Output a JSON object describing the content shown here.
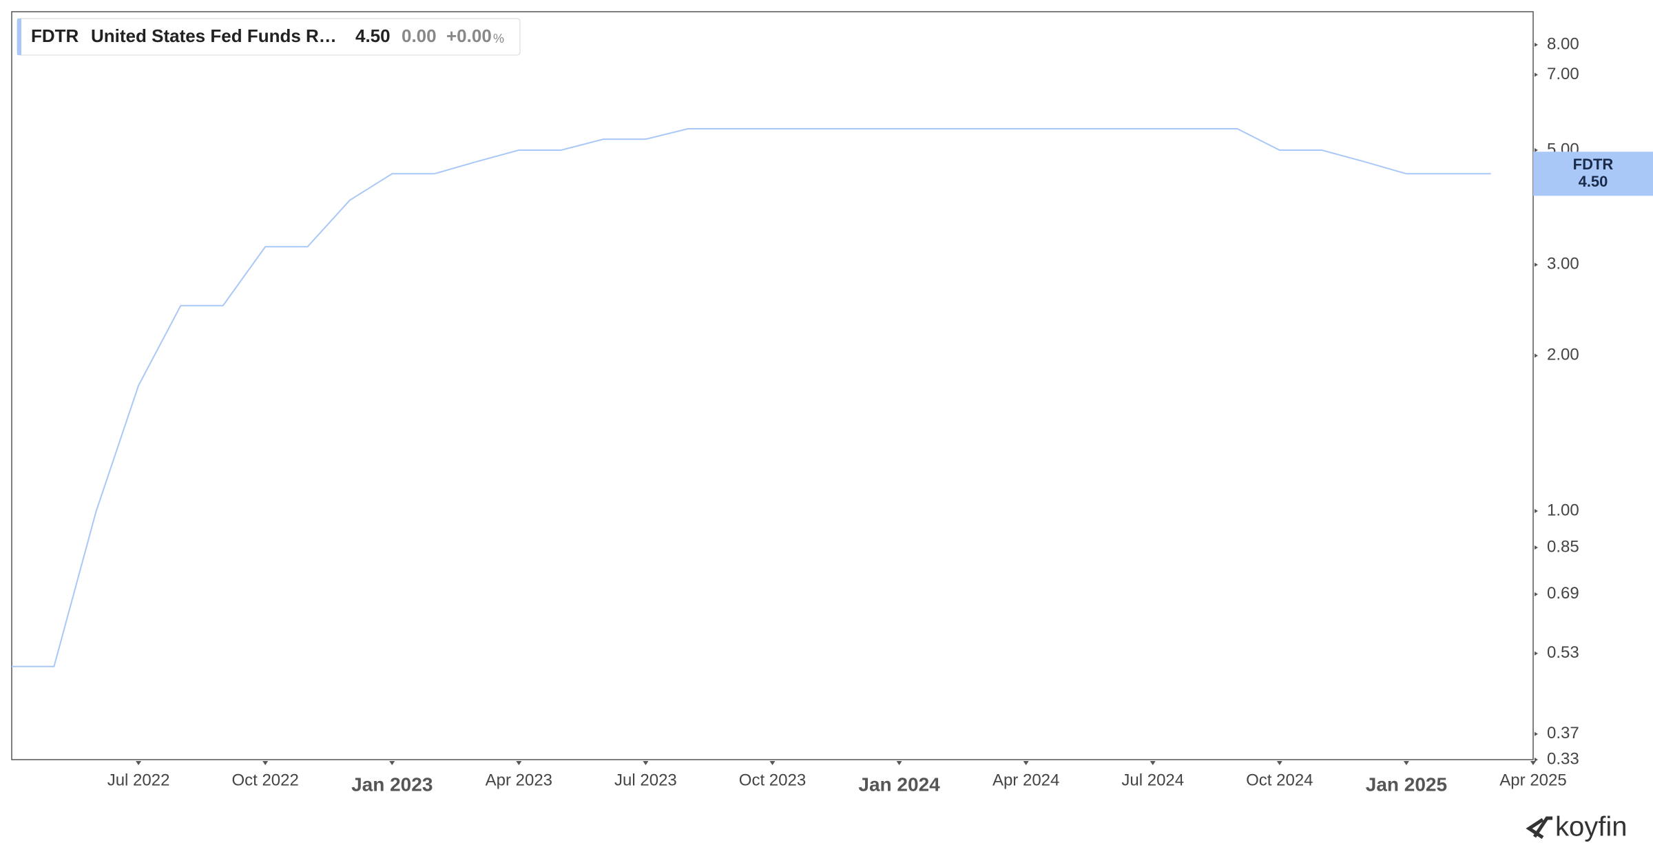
{
  "chart_data": {
    "type": "line",
    "scale": "log",
    "color": "#a9c8f7",
    "legend": {
      "description": "United States Fed Funds R…",
      "last": "4.50",
      "change": "0.00",
      "change_pct": "+0.00",
      "pct_unit": "%"
    },
    "branding": "koyfin",
    "x": [
      "2022-04",
      "2022-05",
      "2022-06",
      "2022-07",
      "2022-08",
      "2022-09",
      "2022-10",
      "2022-11",
      "2022-12",
      "2023-01",
      "2023-02",
      "2023-03",
      "2023-04",
      "2023-05",
      "2023-06",
      "2023-07",
      "2023-08",
      "2023-09",
      "2023-10",
      "2023-11",
      "2023-12",
      "2024-01",
      "2024-02",
      "2024-03",
      "2024-04",
      "2024-05",
      "2024-06",
      "2024-07",
      "2024-08",
      "2024-09",
      "2024-10",
      "2024-11",
      "2024-12",
      "2025-01",
      "2025-02",
      "2025-03"
    ],
    "series": [
      {
        "name": "FDTR",
        "color": "#a9c8f7",
        "values": [
          0.5,
          0.5,
          1.0,
          1.75,
          2.5,
          2.5,
          3.25,
          3.25,
          4.0,
          4.5,
          4.5,
          4.75,
          5.0,
          5.0,
          5.25,
          5.25,
          5.5,
          5.5,
          5.5,
          5.5,
          5.5,
          5.5,
          5.5,
          5.5,
          5.5,
          5.5,
          5.5,
          5.5,
          5.5,
          5.5,
          5.0,
          5.0,
          4.75,
          4.5,
          4.5,
          4.5
        ]
      }
    ],
    "xlim": [
      "2022-04",
      "2025-04"
    ],
    "xticks": [
      {
        "value": "2022-07",
        "label": "Jul 2022"
      },
      {
        "value": "2022-10",
        "label": "Oct 2022"
      },
      {
        "value": "2023-01",
        "label": "Jan 2023"
      },
      {
        "value": "2023-04",
        "label": "Apr 2023"
      },
      {
        "value": "2023-07",
        "label": "Jul 2023"
      },
      {
        "value": "2023-10",
        "label": "Oct 2023"
      },
      {
        "value": "2024-01",
        "label": "Jan 2024"
      },
      {
        "value": "2024-04",
        "label": "Apr 2024"
      },
      {
        "value": "2024-07",
        "label": "Jul 2024"
      },
      {
        "value": "2024-10",
        "label": "Oct 2024"
      },
      {
        "value": "2025-01",
        "label": "Jan 2025"
      },
      {
        "value": "2025-04",
        "label": "Apr 2025"
      }
    ],
    "ylim": [
      0.33,
      9.27
    ],
    "yticks": [
      0.33,
      0.37,
      0.53,
      0.69,
      0.85,
      {
        "value": 1,
        "label": "1.00"
      },
      {
        "value": 2,
        "label": "2.00"
      },
      {
        "value": 3,
        "label": "3.00"
      },
      {
        "value": 5,
        "label": "5.00"
      },
      {
        "value": 7,
        "label": "7.00"
      },
      {
        "value": 8,
        "label": "8.00"
      }
    ]
  }
}
